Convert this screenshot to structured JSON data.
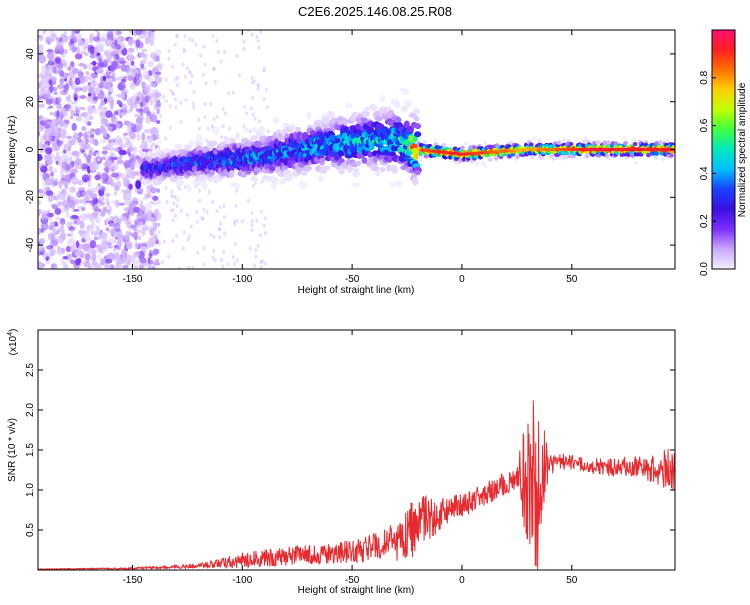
{
  "title": "C2E6.2025.146.08.25.R08",
  "colors": {
    "snr_line": "#e8292e",
    "axis": "#000000",
    "background": "#ffffff"
  },
  "chart_data": [
    {
      "type": "heatmap",
      "xlabel": "Height of straight line (km)",
      "ylabel": "Frequency (Hz)",
      "xlim": [
        -193,
        97
      ],
      "ylim": [
        -50,
        50
      ],
      "x_ticks": [
        -150,
        -100,
        -50,
        0,
        50
      ],
      "y_ticks": [
        -40,
        -20,
        0,
        20,
        40
      ],
      "colorbar": {
        "label": "Normalized spectral amplitude",
        "range": [
          0,
          1
        ],
        "ticks": [
          "0.0",
          "0.2",
          "0.4",
          "0.6",
          "0.8"
        ],
        "colors": [
          "#f4f0ff",
          "#c9a8ff",
          "#7a30ff",
          "#3a10e0",
          "#1a40ff",
          "#00c0ff",
          "#00e8c0",
          "#40ff40",
          "#c0ff00",
          "#ffd000",
          "#ff7000",
          "#ff2020",
          "#ff1070"
        ]
      },
      "ridge": {
        "x": [
          -140,
          -120,
          -100,
          -80,
          -60,
          -40,
          -30,
          -25,
          -20,
          0,
          30,
          60,
          95
        ],
        "y": [
          -8,
          -5,
          -4,
          -1,
          2,
          4,
          4,
          2,
          0,
          -2,
          0,
          0,
          0
        ],
        "amplitude": [
          0.3,
          0.35,
          0.4,
          0.4,
          0.45,
          0.5,
          0.5,
          0.55,
          0.9,
          0.95,
          0.8,
          0.95,
          0.95
        ]
      },
      "noise_region": {
        "x_range": [
          -193,
          -138
        ],
        "y_range": [
          -50,
          50
        ],
        "amplitude": 0.15
      }
    },
    {
      "type": "line",
      "xlabel": "Height of straight line (km)",
      "ylabel": "SNR (10 * v/v)",
      "y_multiplier": "(x10",
      "y_multiplier_exp": "4",
      "y_multiplier_close": ")",
      "xlim": [
        -193,
        97
      ],
      "ylim": [
        0,
        3.0
      ],
      "x_ticks": [
        -150,
        -100,
        -50,
        0,
        50
      ],
      "y_ticks": [
        "0.5",
        "1.0",
        "1.5",
        "2.0",
        "2.5"
      ],
      "envelope": {
        "x": [
          -193,
          -150,
          -120,
          -100,
          -80,
          -60,
          -40,
          -30,
          -22,
          -18,
          -10,
          0,
          10,
          25,
          28,
          32,
          34,
          36,
          40,
          50,
          60,
          70,
          80,
          90,
          97
        ],
        "mean": [
          0.01,
          0.02,
          0.05,
          0.12,
          0.17,
          0.2,
          0.28,
          0.35,
          0.5,
          0.6,
          0.7,
          0.8,
          0.95,
          1.15,
          1.15,
          1.1,
          1.0,
          1.2,
          1.35,
          1.35,
          1.3,
          1.28,
          1.3,
          1.25,
          1.3
        ],
        "jitter": [
          0.005,
          0.01,
          0.03,
          0.1,
          0.12,
          0.13,
          0.18,
          0.25,
          0.4,
          0.35,
          0.2,
          0.15,
          0.15,
          0.15,
          0.6,
          1.0,
          1.3,
          0.7,
          0.15,
          0.1,
          0.1,
          0.12,
          0.15,
          0.2,
          0.35
        ]
      },
      "series": [
        {
          "color": "#e8292e"
        }
      ]
    }
  ]
}
